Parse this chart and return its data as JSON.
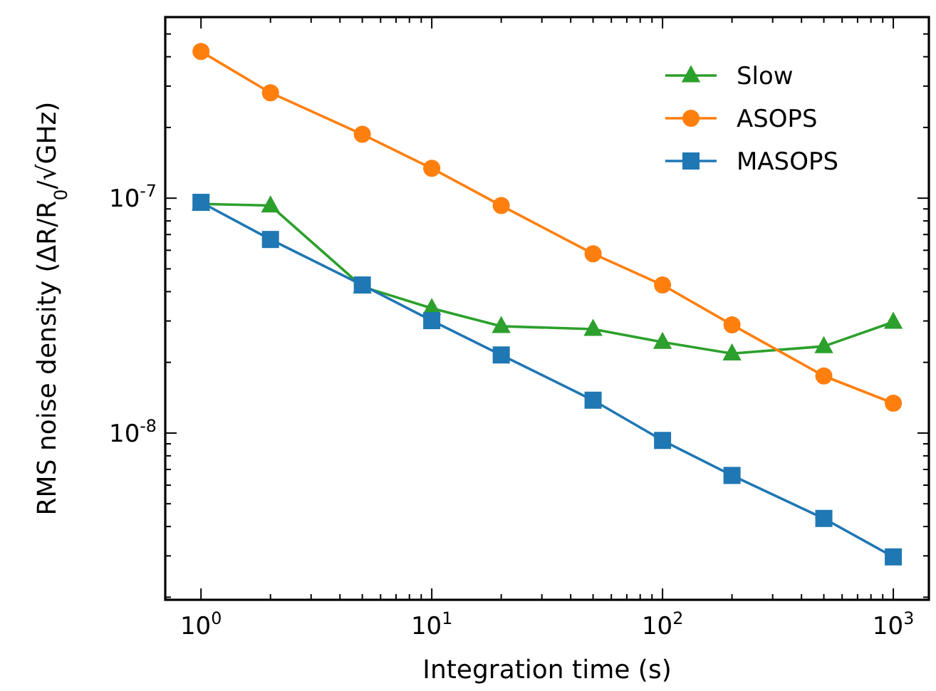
{
  "chart_data": {
    "type": "line",
    "xlabel": "Integration time (s)",
    "ylabel": "RMS noise density (ΔR/R$_{0}$/√GHz)",
    "log": "xy",
    "legend": "top right",
    "line_style": "solid",
    "grid": false,
    "x": [
      1,
      2,
      5,
      10,
      20,
      50,
      100,
      200,
      500,
      1000
    ],
    "xlim": [
      0.7,
      1426
    ],
    "ylim": [
      1.95e-09,
      5.9e-07
    ],
    "xticks": [
      {
        "value": 1,
        "label": "10$^{0}$"
      },
      {
        "value": 2,
        "label": null
      },
      {
        "value": 3,
        "label": null
      },
      {
        "value": 4,
        "label": null
      },
      {
        "value": 5,
        "label": null
      },
      {
        "value": 6,
        "label": null
      },
      {
        "value": 7,
        "label": null
      },
      {
        "value": 8,
        "label": null
      },
      {
        "value": 9,
        "label": null
      },
      {
        "value": 10,
        "label": "10$^{1}$"
      },
      {
        "value": 20,
        "label": null
      },
      {
        "value": 30,
        "label": null
      },
      {
        "value": 40,
        "label": null
      },
      {
        "value": 50,
        "label": null
      },
      {
        "value": 60,
        "label": null
      },
      {
        "value": 70,
        "label": null
      },
      {
        "value": 80,
        "label": null
      },
      {
        "value": 90,
        "label": null
      },
      {
        "value": 100,
        "label": "10$^{2}$"
      },
      {
        "value": 200,
        "label": null
      },
      {
        "value": 300,
        "label": null
      },
      {
        "value": 400,
        "label": null
      },
      {
        "value": 500,
        "label": null
      },
      {
        "value": 600,
        "label": null
      },
      {
        "value": 700,
        "label": null
      },
      {
        "value": 800,
        "label": null
      },
      {
        "value": 900,
        "label": null
      },
      {
        "value": 1000,
        "label": "10$^{3}$"
      }
    ],
    "yticks": [
      {
        "value": 2e-09,
        "label": null
      },
      {
        "value": 3e-09,
        "label": null
      },
      {
        "value": 4e-09,
        "label": null
      },
      {
        "value": 5e-09,
        "label": null
      },
      {
        "value": 6e-09,
        "label": null
      },
      {
        "value": 7e-09,
        "label": null
      },
      {
        "value": 8e-09,
        "label": null
      },
      {
        "value": 9e-09,
        "label": null
      },
      {
        "value": 1e-08,
        "label": "10$^{-8}$"
      },
      {
        "value": 2e-08,
        "label": null
      },
      {
        "value": 3e-08,
        "label": null
      },
      {
        "value": 4e-08,
        "label": null
      },
      {
        "value": 5e-08,
        "label": null
      },
      {
        "value": 6e-08,
        "label": null
      },
      {
        "value": 7e-08,
        "label": null
      },
      {
        "value": 8e-08,
        "label": null
      },
      {
        "value": 9e-08,
        "label": null
      },
      {
        "value": 1e-07,
        "label": "10$^{-7}$"
      },
      {
        "value": 2e-07,
        "label": null
      },
      {
        "value": 3e-07,
        "label": null
      },
      {
        "value": 4e-07,
        "label": null
      },
      {
        "value": 5e-07,
        "label": null
      }
    ],
    "series": [
      {
        "name": "Slow",
        "color": "#2ca02c",
        "marker": "triangle",
        "values": [
          9.45e-08,
          9.3e-08,
          4.2e-08,
          3.4e-08,
          2.85e-08,
          2.77e-08,
          2.44e-08,
          2.18e-08,
          2.34e-08,
          2.97e-08
        ]
      },
      {
        "name": "ASOPS",
        "color": "#ff7f0e",
        "marker": "circle",
        "values": [
          4.21e-07,
          2.81e-07,
          1.87e-07,
          1.34e-07,
          9.3e-08,
          5.8e-08,
          4.27e-08,
          2.89e-08,
          1.75e-08,
          1.34e-08
        ]
      },
      {
        "name": "MASOPS",
        "color": "#1f77b4",
        "marker": "square",
        "values": [
          9.6e-08,
          6.67e-08,
          4.27e-08,
          3.01e-08,
          2.15e-08,
          1.38e-08,
          9.3e-09,
          6.6e-09,
          4.33e-09,
          2.97e-09
        ]
      }
    ]
  }
}
